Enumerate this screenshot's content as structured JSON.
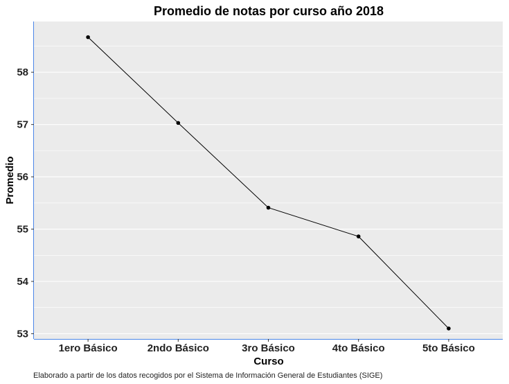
{
  "chart_data": {
    "type": "line",
    "title": "Promedio de notas por curso año 2018",
    "xlabel": "Curso",
    "ylabel": "Promedio",
    "categories": [
      "1ero Básico",
      "2ndo Básico",
      "3ro Básico",
      "4to Básico",
      "5to Básico"
    ],
    "series": [
      {
        "values": [
          58.67,
          57.03,
          55.41,
          54.86,
          53.1
        ]
      }
    ],
    "ylim": [
      52.9,
      58.97
    ],
    "yticks": [
      53,
      54,
      55,
      56,
      57,
      58
    ],
    "grid": true,
    "legend": "none",
    "colors": {
      "panel": "#EBEBEB",
      "grid": "#FFFFFF",
      "line": "#000000",
      "axis": "#4A86E8"
    },
    "caption": "Elaborado a partir de los datos recogidos por el  Sistema de Información General de Estudiantes (SIGE)"
  }
}
